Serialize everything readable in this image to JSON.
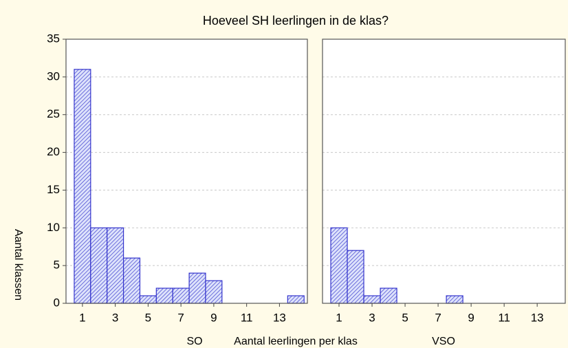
{
  "title": "Hoeveel SH leerlingen in de klas?",
  "y_label": "Aantal klassen",
  "x_label": "Aantal leerlingen per klas",
  "chart_data": [
    {
      "type": "histogram",
      "name": "SO",
      "color": "#3333cc",
      "bins": [
        0.5,
        1.5,
        2.5,
        3.5,
        4.5,
        5.5,
        6.5,
        7.5,
        8.5,
        9.5,
        10.5,
        11.5,
        12.5,
        13.5,
        14.5
      ],
      "counts": [
        31,
        10,
        10,
        6,
        1,
        2,
        2,
        4,
        3,
        0,
        0,
        0,
        0,
        1
      ],
      "xlim": [
        0,
        14.7
      ],
      "xticks": [
        1,
        3,
        5,
        7,
        9,
        11,
        13
      ],
      "ylim": [
        0,
        35
      ],
      "yticks": [
        0,
        5,
        10,
        15,
        20,
        25,
        30,
        35
      ],
      "grid": true
    },
    {
      "type": "histogram",
      "name": "VSO",
      "color": "#3333cc",
      "bins": [
        0.5,
        1.5,
        2.5,
        3.5,
        4.5,
        5.5,
        6.5,
        7.5,
        8.5,
        9.5,
        10.5,
        11.5,
        12.5,
        13.5,
        14.5
      ],
      "counts": [
        10,
        7,
        1,
        2,
        0,
        0,
        0,
        1,
        0,
        0,
        0,
        0,
        0,
        0
      ],
      "xlim": [
        0,
        14.7
      ],
      "xticks": [
        1,
        3,
        5,
        7,
        9,
        11,
        13
      ],
      "ylim": [
        0,
        35
      ],
      "yticks": [
        0,
        5,
        10,
        15,
        20,
        25,
        30,
        35
      ],
      "grid": true
    }
  ]
}
